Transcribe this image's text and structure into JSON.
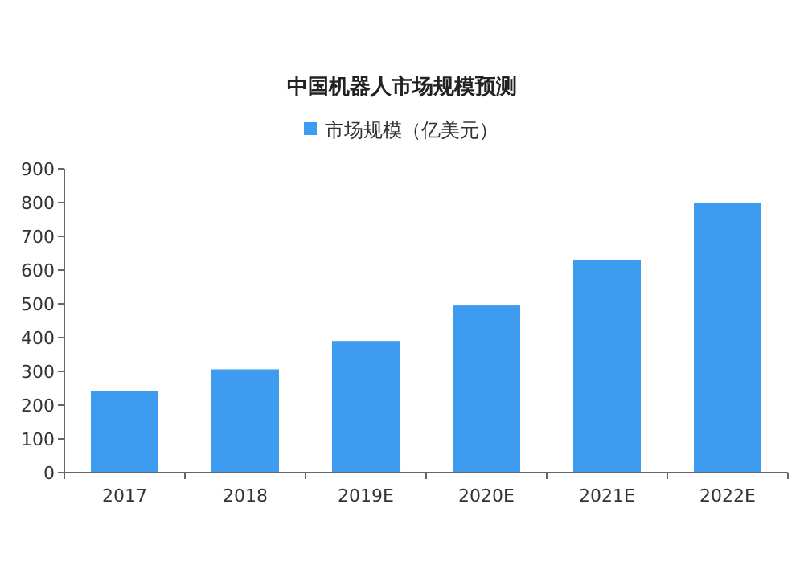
{
  "chart_data": {
    "type": "bar",
    "title": "中国机器人市场规模预测",
    "legend": "top",
    "grid": false,
    "categories": [
      "2017",
      "2018",
      "2019E",
      "2020E",
      "2021E",
      "2022E"
    ],
    "series": [
      {
        "name": "市场规模（亿美元）",
        "color": "#3d9cf0",
        "values": [
          242,
          306,
          390,
          495,
          629,
          800
        ]
      }
    ],
    "ylim": [
      0,
      900
    ],
    "yticks": [
      0,
      100,
      200,
      300,
      400,
      500,
      600,
      700,
      800,
      900
    ]
  }
}
